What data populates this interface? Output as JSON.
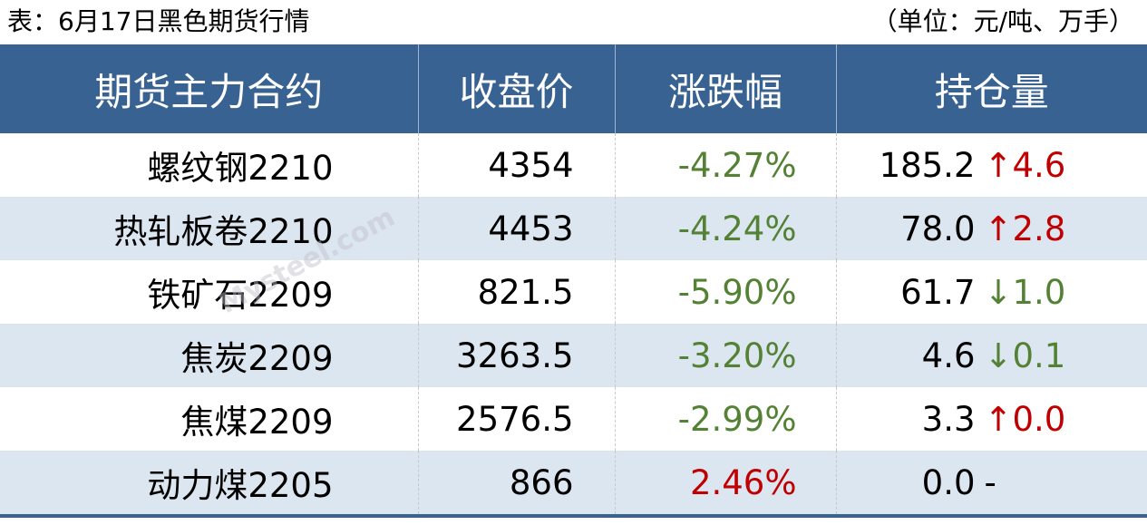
{
  "caption": {
    "title": "表：6月17日黑色期货行情",
    "unit": "（单位：元/吨、万手）"
  },
  "headers": [
    "期货主力合约",
    "收盘价",
    "涨跌幅",
    "持仓量"
  ],
  "rows": [
    {
      "contract": "螺纹钢2210",
      "close": "4354",
      "change_pct": "-4.27%",
      "pct_dir": "down",
      "open_interest": "185.2",
      "oi_change": "↑4.6",
      "oi_dir": "up"
    },
    {
      "contract": "热轧板卷2210",
      "close": "4453",
      "change_pct": "-4.24%",
      "pct_dir": "down",
      "open_interest": "78.0",
      "oi_change": "↑2.8",
      "oi_dir": "up"
    },
    {
      "contract": "铁矿石2209",
      "close": "821.5",
      "change_pct": "-5.90%",
      "pct_dir": "down",
      "open_interest": "61.7",
      "oi_change": "↓1.0",
      "oi_dir": "down"
    },
    {
      "contract": "焦炭2209",
      "close": "3263.5",
      "change_pct": "-3.20%",
      "pct_dir": "down",
      "open_interest": "4.6",
      "oi_change": "↓0.1",
      "oi_dir": "down"
    },
    {
      "contract": "焦煤2209",
      "close": "2576.5",
      "change_pct": "-2.99%",
      "pct_dir": "down",
      "open_interest": "3.3",
      "oi_change": "↑0.0",
      "oi_dir": "up"
    },
    {
      "contract": "动力煤2205",
      "close": "866",
      "change_pct": "2.46%",
      "pct_dir": "up",
      "open_interest": "0.0",
      "oi_change": "-",
      "oi_dir": "none"
    }
  ],
  "watermark": "Mysteel.com",
  "colors": {
    "header_bg": "#386292",
    "alt_row": "#dce6f1",
    "up": "#c00000",
    "down": "#548235"
  }
}
